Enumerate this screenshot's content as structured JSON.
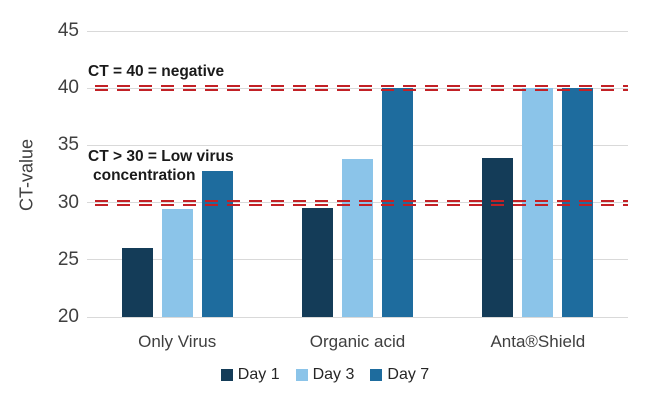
{
  "chart_data": {
    "type": "bar",
    "title": "",
    "ylabel": "CT-value",
    "ylim": [
      20,
      45
    ],
    "yticks": [
      45,
      40,
      35,
      30,
      25,
      20
    ],
    "grid": true,
    "legend_position": "bottom",
    "categories": [
      "Only Virus",
      "Organic acid",
      "Anta®Shield"
    ],
    "series": [
      {
        "name": "Day 1",
        "color": "#143C58",
        "values": [
          26.0,
          29.5,
          33.9
        ]
      },
      {
        "name": "Day 3",
        "color": "#8BC4E9",
        "values": [
          29.4,
          33.8,
          40.0
        ]
      },
      {
        "name": "Day 7",
        "color": "#1E6C9E",
        "values": [
          32.8,
          40.0,
          40.0
        ]
      }
    ],
    "reference_lines": [
      {
        "value": 40,
        "color": "#C22126",
        "style": "double-dashed",
        "label": "CT = 40 = negative"
      },
      {
        "value": 30,
        "color": "#C22126",
        "style": "double-dashed",
        "label": "CT > 30 = Low virus concentration"
      }
    ]
  },
  "annotations": {
    "negative_line1": "CT = 40 = negative",
    "low_virus_line1": "CT > 30 = Low virus",
    "low_virus_line2": "concentration"
  },
  "colors": {
    "background": "#FFFFFF",
    "gridline": "#D9D9D9",
    "axis_text": "#3F3F3F",
    "annotation_text": "#1A1A1A",
    "reference_line": "#C22126"
  }
}
